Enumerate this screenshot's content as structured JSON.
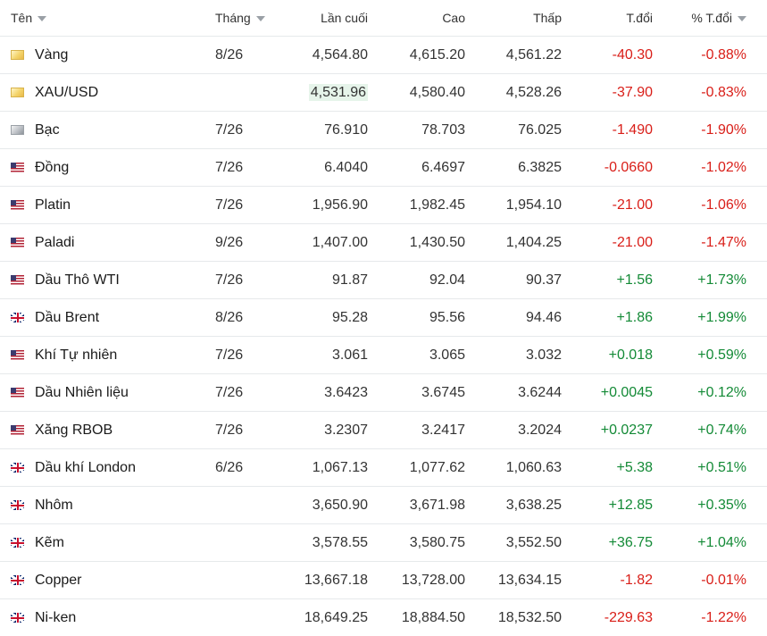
{
  "headers": {
    "name": "Tên",
    "month": "Tháng",
    "last": "Lần cuối",
    "high": "Cao",
    "low": "Thấp",
    "change": "T.đổi",
    "pct_change": "% T.đổi"
  },
  "rows": [
    {
      "name": "Vàng",
      "flag": "gold-icon",
      "month": "8/26",
      "last": "4,564.80",
      "high": "4,615.20",
      "low": "4,561.22",
      "change": "-40.30",
      "pct": "-0.88%",
      "dir": "neg"
    },
    {
      "name": "XAU/USD",
      "flag": "gold-icon",
      "month": "",
      "last": "4,531.96",
      "high": "4,580.40",
      "low": "4,528.26",
      "change": "-37.90",
      "pct": "-0.83%",
      "dir": "neg",
      "highlight_last": true
    },
    {
      "name": "Bạc",
      "flag": "silver-icon",
      "month": "7/26",
      "last": "76.910",
      "high": "78.703",
      "low": "76.025",
      "change": "-1.490",
      "pct": "-1.90%",
      "dir": "neg"
    },
    {
      "name": "Đồng",
      "flag": "us-flag-icon",
      "month": "7/26",
      "last": "6.4040",
      "high": "6.4697",
      "low": "6.3825",
      "change": "-0.0660",
      "pct": "-1.02%",
      "dir": "neg"
    },
    {
      "name": "Platin",
      "flag": "us-flag-icon",
      "month": "7/26",
      "last": "1,956.90",
      "high": "1,982.45",
      "low": "1,954.10",
      "change": "-21.00",
      "pct": "-1.06%",
      "dir": "neg"
    },
    {
      "name": "Paladi",
      "flag": "us-flag-icon",
      "month": "9/26",
      "last": "1,407.00",
      "high": "1,430.50",
      "low": "1,404.25",
      "change": "-21.00",
      "pct": "-1.47%",
      "dir": "neg"
    },
    {
      "name": "Dầu Thô WTI",
      "flag": "us-flag-icon",
      "month": "7/26",
      "last": "91.87",
      "high": "92.04",
      "low": "90.37",
      "change": "+1.56",
      "pct": "+1.73%",
      "dir": "pos"
    },
    {
      "name": "Dầu Brent",
      "flag": "uk-flag-icon",
      "month": "8/26",
      "last": "95.28",
      "high": "95.56",
      "low": "94.46",
      "change": "+1.86",
      "pct": "+1.99%",
      "dir": "pos"
    },
    {
      "name": "Khí Tự nhiên",
      "flag": "us-flag-icon",
      "month": "7/26",
      "last": "3.061",
      "high": "3.065",
      "low": "3.032",
      "change": "+0.018",
      "pct": "+0.59%",
      "dir": "pos"
    },
    {
      "name": "Dầu Nhiên liệu",
      "flag": "us-flag-icon",
      "month": "7/26",
      "last": "3.6423",
      "high": "3.6745",
      "low": "3.6244",
      "change": "+0.0045",
      "pct": "+0.12%",
      "dir": "pos"
    },
    {
      "name": "Xăng RBOB",
      "flag": "us-flag-icon",
      "month": "7/26",
      "last": "3.2307",
      "high": "3.2417",
      "low": "3.2024",
      "change": "+0.0237",
      "pct": "+0.74%",
      "dir": "pos"
    },
    {
      "name": "Dầu khí London",
      "flag": "uk-flag-icon",
      "month": "6/26",
      "last": "1,067.13",
      "high": "1,077.62",
      "low": "1,060.63",
      "change": "+5.38",
      "pct": "+0.51%",
      "dir": "pos"
    },
    {
      "name": "Nhôm",
      "flag": "uk-flag-icon",
      "month": "",
      "last": "3,650.90",
      "high": "3,671.98",
      "low": "3,638.25",
      "change": "+12.85",
      "pct": "+0.35%",
      "dir": "pos"
    },
    {
      "name": "Kẽm",
      "flag": "uk-flag-icon",
      "month": "",
      "last": "3,578.55",
      "high": "3,580.75",
      "low": "3,552.50",
      "change": "+36.75",
      "pct": "+1.04%",
      "dir": "pos"
    },
    {
      "name": "Copper",
      "flag": "uk-flag-icon",
      "month": "",
      "last": "13,667.18",
      "high": "13,728.00",
      "low": "13,634.15",
      "change": "-1.82",
      "pct": "-0.01%",
      "dir": "neg"
    },
    {
      "name": "Ni-ken",
      "flag": "uk-flag-icon",
      "month": "",
      "last": "18,649.25",
      "high": "18,884.50",
      "low": "18,532.50",
      "change": "-229.63",
      "pct": "-1.22%",
      "dir": "neg"
    }
  ],
  "colors": {
    "negative": "#d91e18",
    "positive": "#138a36",
    "highlight": "#e6f4ea"
  }
}
